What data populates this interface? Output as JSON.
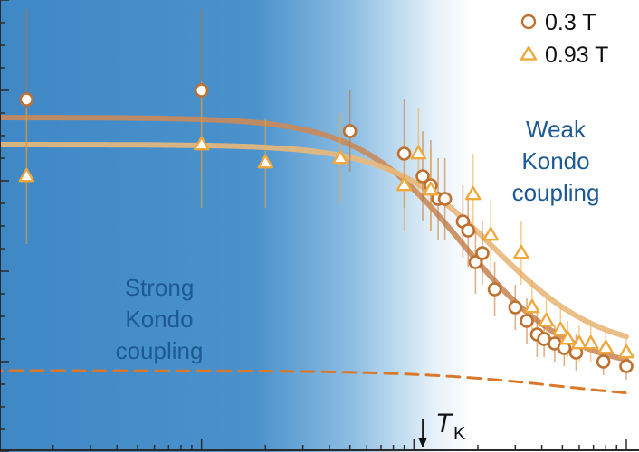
{
  "chart_data": {
    "type": "scatter",
    "xscale": "log",
    "xlim": [
      0.01,
      10
    ],
    "ylim": [
      0,
      1
    ],
    "series": [
      {
        "name": "0.3 T",
        "marker": "circle",
        "color": "#c0702e",
        "points": [
          {
            "x": 0.015,
            "y": 0.78,
            "err": 0.2
          },
          {
            "x": 0.1,
            "y": 0.8,
            "err": 0.18
          },
          {
            "x": 0.5,
            "y": 0.71,
            "err": 0.09
          },
          {
            "x": 0.9,
            "y": 0.66,
            "err": 0.12
          },
          {
            "x": 1.1,
            "y": 0.61,
            "err": 0.1
          },
          {
            "x": 1.2,
            "y": 0.59,
            "err": 0.1
          },
          {
            "x": 1.3,
            "y": 0.56,
            "err": 0.09
          },
          {
            "x": 1.4,
            "y": 0.56,
            "err": 0.09
          },
          {
            "x": 1.7,
            "y": 0.51,
            "err": 0.08
          },
          {
            "x": 1.8,
            "y": 0.49,
            "err": 0.08
          },
          {
            "x": 1.95,
            "y": 0.42,
            "err": 0.07
          },
          {
            "x": 2.1,
            "y": 0.44,
            "err": 0.07
          },
          {
            "x": 2.4,
            "y": 0.36,
            "err": 0.06
          },
          {
            "x": 3.0,
            "y": 0.32,
            "err": 0.05
          },
          {
            "x": 3.4,
            "y": 0.29,
            "err": 0.05
          },
          {
            "x": 3.8,
            "y": 0.26,
            "err": 0.05
          },
          {
            "x": 4.1,
            "y": 0.25,
            "err": 0.04
          },
          {
            "x": 4.6,
            "y": 0.24,
            "err": 0.04
          },
          {
            "x": 5.1,
            "y": 0.23,
            "err": 0.04
          },
          {
            "x": 5.8,
            "y": 0.22,
            "err": 0.04
          },
          {
            "x": 7.8,
            "y": 0.2,
            "err": 0.03
          },
          {
            "x": 10,
            "y": 0.19,
            "err": 0.03
          }
        ]
      },
      {
        "name": "0.93 T",
        "marker": "triangle",
        "color": "#f0a83c",
        "points": [
          {
            "x": 0.015,
            "y": 0.61,
            "err": 0.15
          },
          {
            "x": 0.1,
            "y": 0.68,
            "err": 0.14
          },
          {
            "x": 0.2,
            "y": 0.64,
            "err": 0.1
          },
          {
            "x": 0.45,
            "y": 0.65,
            "err": 0.1
          },
          {
            "x": 0.9,
            "y": 0.59,
            "err": 0.1
          },
          {
            "x": 1.05,
            "y": 0.66,
            "err": 0.1
          },
          {
            "x": 1.2,
            "y": 0.58,
            "err": 0.09
          },
          {
            "x": 1.9,
            "y": 0.57,
            "err": 0.09
          },
          {
            "x": 2.3,
            "y": 0.48,
            "err": 0.08
          },
          {
            "x": 3.2,
            "y": 0.44,
            "err": 0.07
          },
          {
            "x": 3.6,
            "y": 0.32,
            "err": 0.06
          },
          {
            "x": 4.2,
            "y": 0.29,
            "err": 0.05
          },
          {
            "x": 4.9,
            "y": 0.27,
            "err": 0.05
          },
          {
            "x": 5.3,
            "y": 0.25,
            "err": 0.04
          },
          {
            "x": 6.0,
            "y": 0.24,
            "err": 0.04
          },
          {
            "x": 6.8,
            "y": 0.24,
            "err": 0.04
          },
          {
            "x": 8.0,
            "y": 0.23,
            "err": 0.04
          },
          {
            "x": 10,
            "y": 0.22,
            "err": 0.03
          }
        ]
      }
    ],
    "curves": [
      {
        "name": "0.3 T fit",
        "style": "solid",
        "color": "#c98a5a",
        "plateau": 0.74,
        "tail": 0.18,
        "xmid": 1.7,
        "width": 1.15
      },
      {
        "name": "0.93 T fit",
        "style": "solid",
        "color": "#e8b87a",
        "plateau": 0.68,
        "tail": 0.22,
        "xmid": 2.4,
        "width": 1.15
      },
      {
        "name": "dashed",
        "style": "dashed",
        "color": "#d9782a",
        "plateau": 0.18,
        "tail": 0.11,
        "xmid": 5.0,
        "width": 1.6
      }
    ],
    "marker_label": "T",
    "marker_subscript": "K",
    "marker_x": 1.1,
    "legend": {
      "placement": "top-right",
      "entries": [
        "0.3 T",
        "0.93 T"
      ]
    },
    "regions": {
      "left": [
        "Strong",
        "Kondo",
        "coupling"
      ],
      "right": [
        "Weak",
        "Kondo",
        "coupling"
      ]
    },
    "colors": {
      "strong_bg": "#3f88c6",
      "weak_bg": "#ffffff",
      "region_text": "#1d5a94",
      "axis": "#2a2a2a"
    }
  }
}
